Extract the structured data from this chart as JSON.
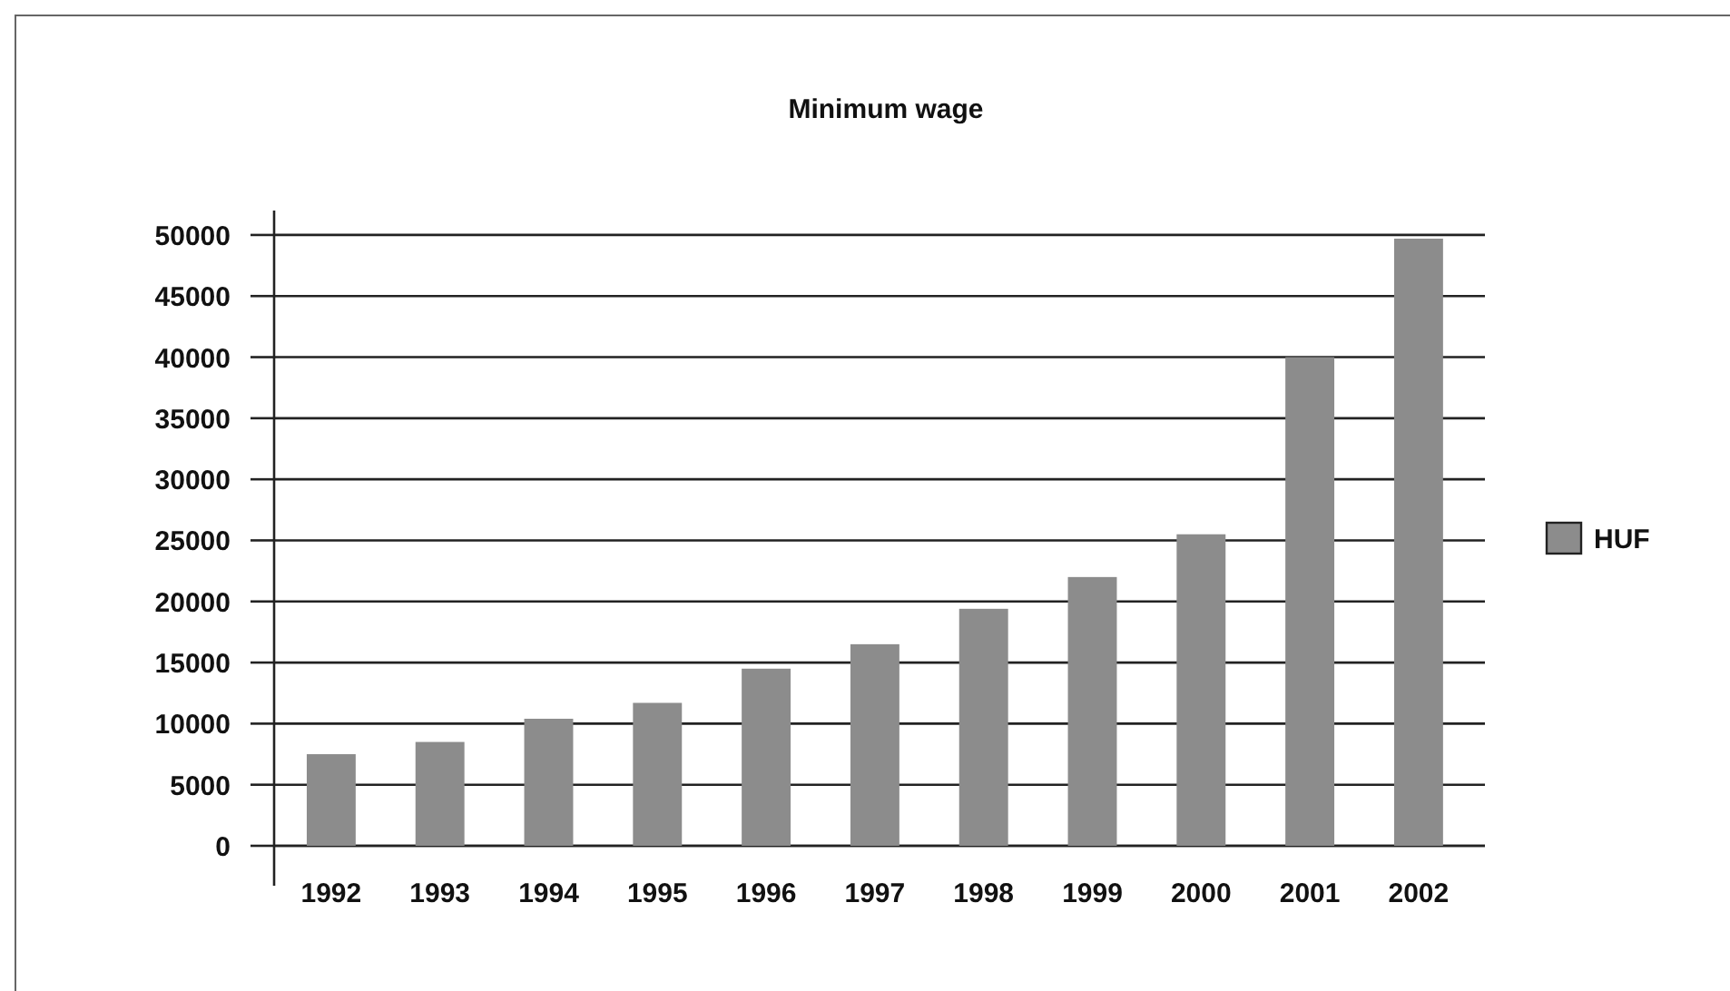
{
  "chart_data": {
    "type": "bar",
    "title": "Minimum wage",
    "categories": [
      "1992",
      "1993",
      "1994",
      "1995",
      "1996",
      "1997",
      "1998",
      "1999",
      "2000",
      "2001",
      "2002"
    ],
    "series": [
      {
        "name": "HUF",
        "color": "#8c8c8c",
        "values": [
          7500,
          8500,
          10400,
          11700,
          14500,
          16500,
          19400,
          22000,
          25500,
          40000,
          49700
        ]
      }
    ],
    "ylim": [
      0,
      52000
    ],
    "yticks": [
      0,
      5000,
      10000,
      15000,
      20000,
      25000,
      30000,
      35000,
      40000,
      45000,
      50000
    ],
    "grid": "y",
    "legend": "right"
  }
}
